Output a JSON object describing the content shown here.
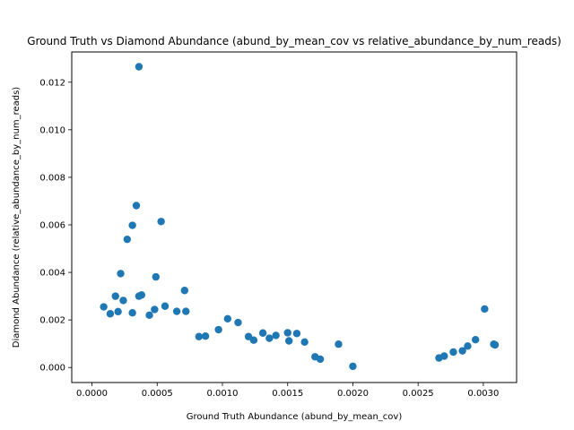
{
  "chart_data": {
    "type": "scatter",
    "title": "Ground Truth vs Diamond Abundance (abund_by_mean_cov vs relative_abundance_by_num_reads)",
    "xlabel": "Ground Truth Abundance (abund_by_mean_cov)",
    "ylabel": "Diamond Abundance (relative_abundance_by_num_reads)",
    "xlim": [
      -0.000155,
      0.003255
    ],
    "ylim": [
      -0.000632,
      0.013272
    ],
    "xticks": [
      0.0,
      0.0005,
      0.001,
      0.0015,
      0.002,
      0.0025,
      0.003
    ],
    "xtick_labels": [
      "0.0000",
      "0.0005",
      "0.0010",
      "0.0015",
      "0.0020",
      "0.0025",
      "0.0030"
    ],
    "yticks": [
      0.0,
      0.002,
      0.004,
      0.006,
      0.008,
      0.01,
      0.012
    ],
    "ytick_labels": [
      "0.000",
      "0.002",
      "0.004",
      "0.006",
      "0.008",
      "0.010",
      "0.012"
    ],
    "grid": false,
    "marker_color": "#1f77b4",
    "series": [
      {
        "points": [
          [
            0.00036,
            0.01265
          ],
          [
            0.00034,
            0.00681
          ],
          [
            0.00031,
            0.00598
          ],
          [
            0.00053,
            0.00614
          ],
          [
            0.00027,
            0.00539
          ],
          [
            0.00022,
            0.00395
          ],
          [
            0.00049,
            0.00381
          ],
          [
            0.00071,
            0.00324
          ],
          [
            0.00018,
            0.003
          ],
          [
            0.00038,
            0.00305
          ],
          [
            0.00036,
            0.003
          ],
          [
            0.00024,
            0.00282
          ],
          [
            0.00056,
            0.00258
          ],
          [
            0.00048,
            0.00244
          ],
          [
            0.00065,
            0.00236
          ],
          [
            0.00072,
            0.00236
          ],
          [
            9e-05,
            0.00255
          ],
          [
            0.00031,
            0.0023
          ],
          [
            0.0002,
            0.00235
          ],
          [
            0.00014,
            0.00226
          ],
          [
            0.00044,
            0.0022
          ],
          [
            0.00301,
            0.00246
          ],
          [
            0.00104,
            0.00205
          ],
          [
            0.00112,
            0.00189
          ],
          [
            0.00131,
            0.00145
          ],
          [
            0.00141,
            0.00135
          ],
          [
            0.0015,
            0.00146
          ],
          [
            0.00157,
            0.00143
          ],
          [
            0.00151,
            0.00112
          ],
          [
            0.00163,
            0.00107
          ],
          [
            0.00171,
            0.00045
          ],
          [
            0.00175,
            0.00035
          ],
          [
            0.00189,
            0.00098
          ],
          [
            0.002,
            5e-05
          ],
          [
            0.00097,
            0.00159
          ],
          [
            0.00087,
            0.00132
          ],
          [
            0.00082,
            0.0013
          ],
          [
            0.0012,
            0.0013
          ],
          [
            0.00124,
            0.00115
          ],
          [
            0.00136,
            0.00123
          ],
          [
            0.00308,
            0.00098
          ],
          [
            0.00309,
            0.00095
          ],
          [
            0.00294,
            0.00117
          ],
          [
            0.00288,
            0.0009
          ],
          [
            0.00284,
            0.0007
          ],
          [
            0.00277,
            0.00065
          ],
          [
            0.0027,
            0.00048
          ],
          [
            0.00266,
            0.0004
          ]
        ]
      }
    ]
  }
}
